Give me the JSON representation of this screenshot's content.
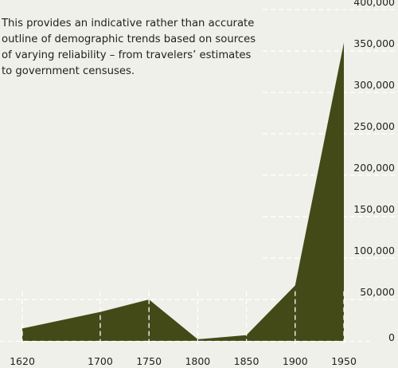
{
  "annotation": "This provides an indicative rather than accurate outline of demographic trends based on sources of varying reliability – from travelers’ estimates to government censuses.",
  "chart_data": {
    "type": "area",
    "x": [
      1620,
      1700,
      1750,
      1800,
      1850,
      1900,
      1950
    ],
    "values": [
      15000,
      35000,
      50000,
      2000,
      7000,
      67000,
      360000
    ],
    "xticks": [
      "1620",
      "1700",
      "1750",
      "1800",
      "1850",
      "1900",
      "1950"
    ],
    "yticks": [
      "400,000",
      "350,000",
      "300,000",
      "250,000",
      "200,000",
      "150,000",
      "100,000",
      "50,000",
      "0"
    ],
    "xlim": [
      1620,
      1950
    ],
    "ylim": [
      0,
      400000
    ],
    "grid": true,
    "fill_color": "#434a17",
    "grid_color": "#ffffff",
    "text_color": "#222222"
  }
}
